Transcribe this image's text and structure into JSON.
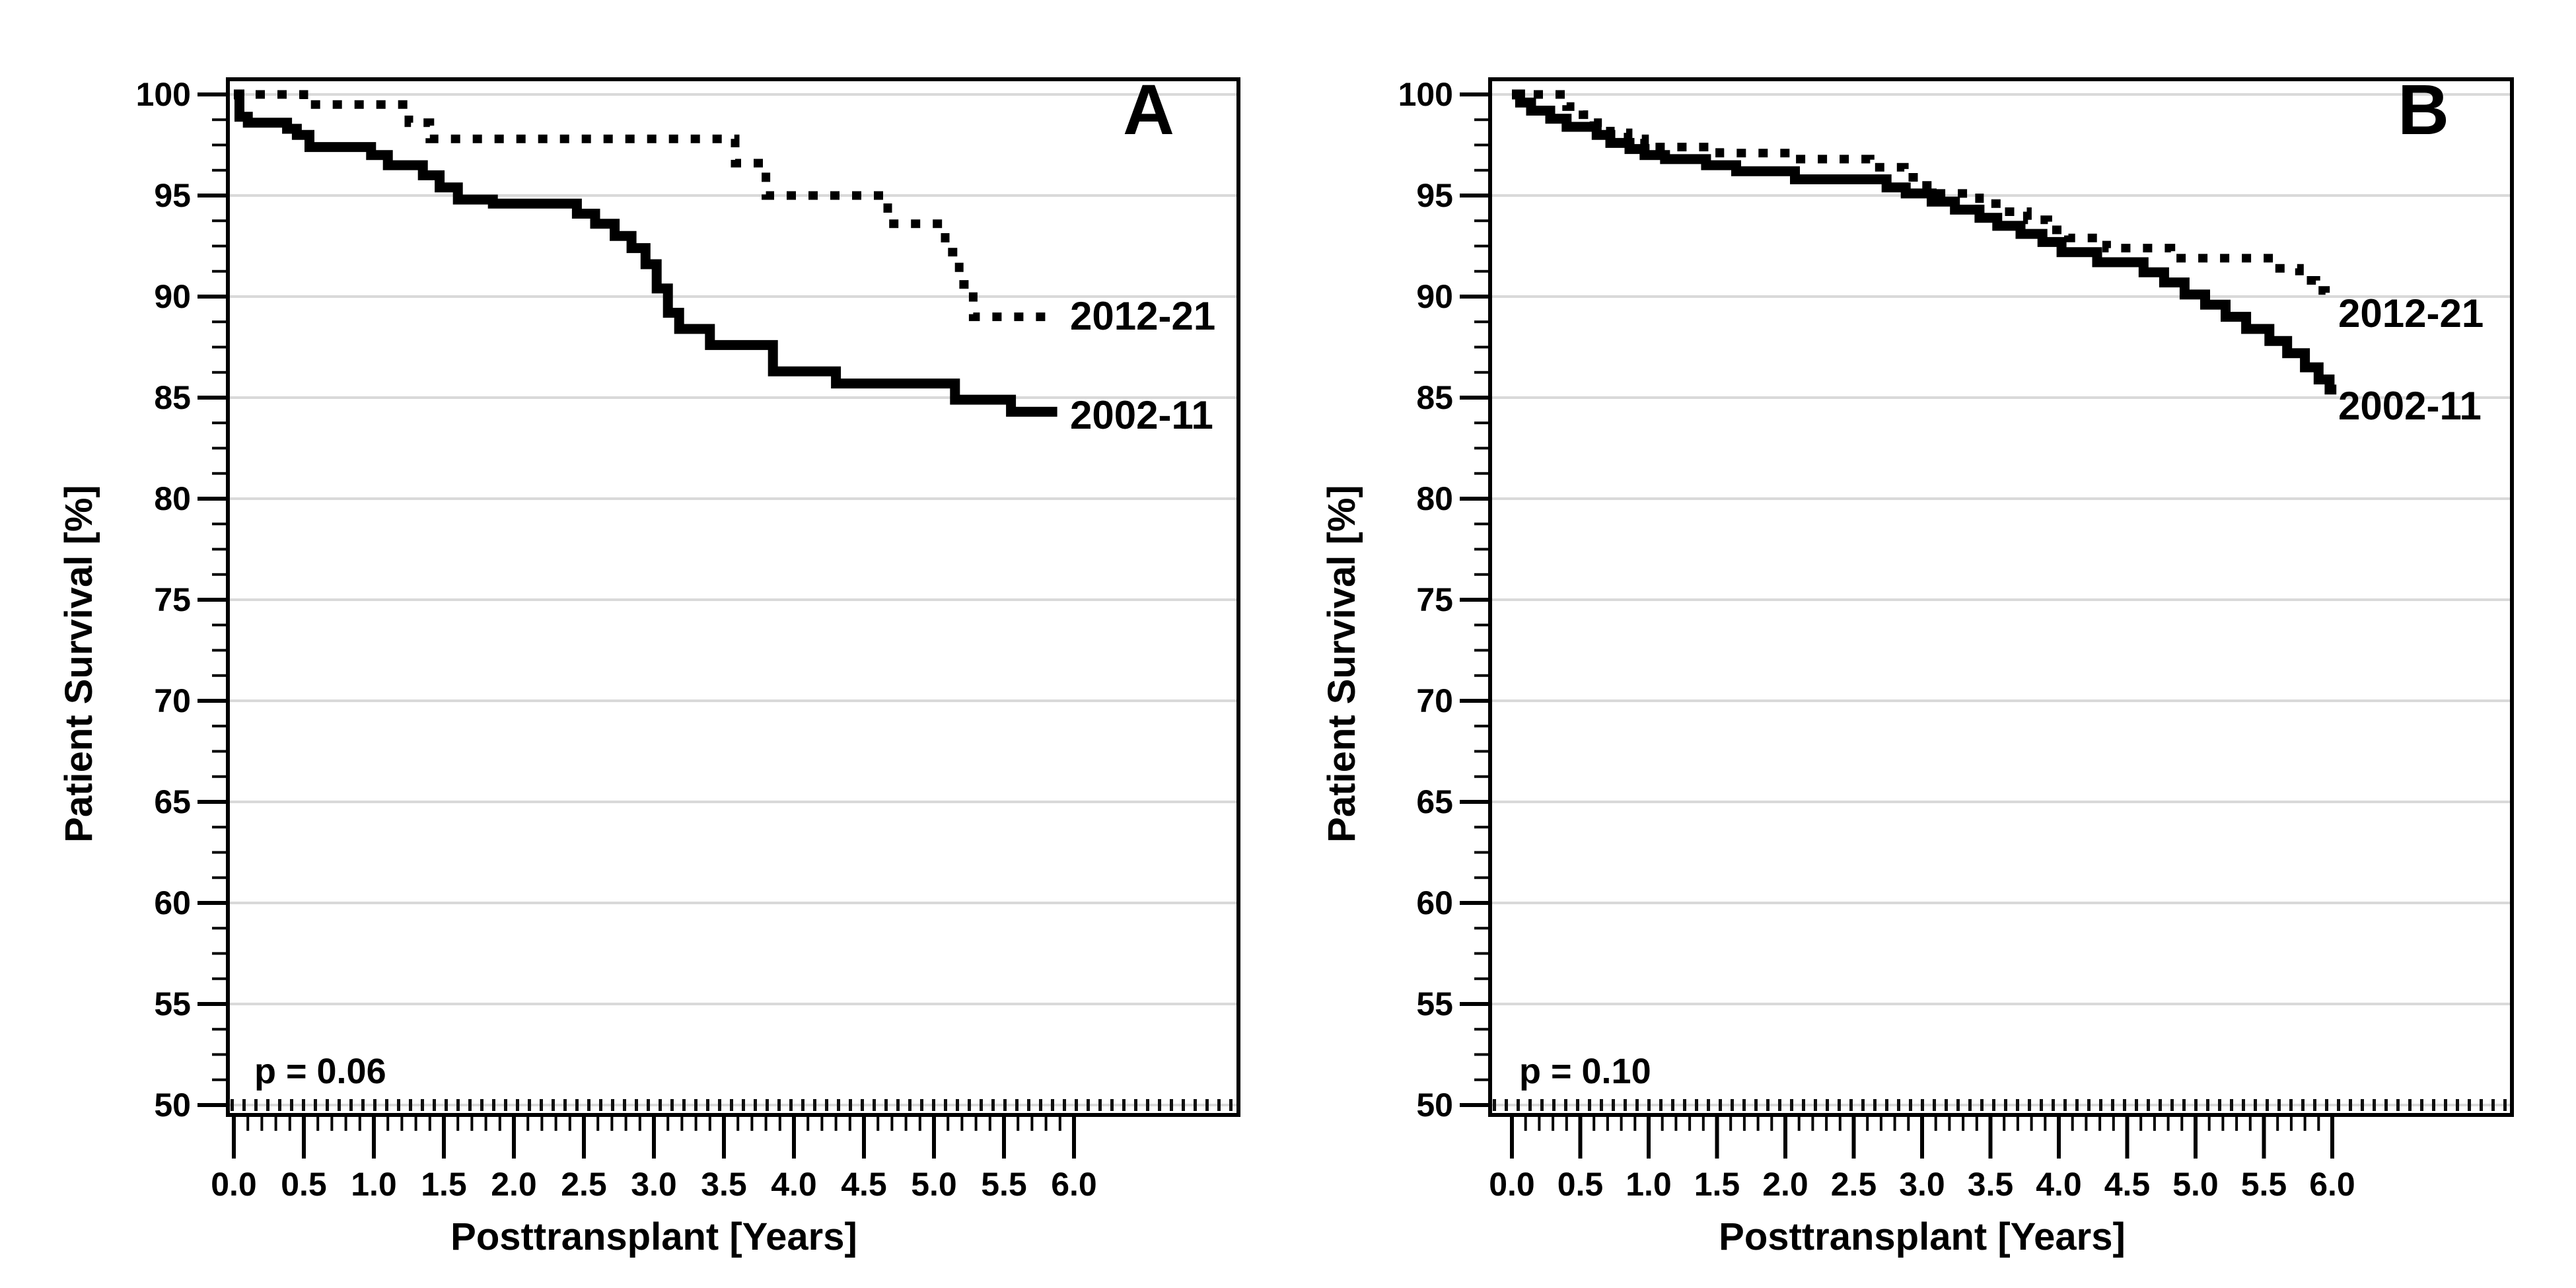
{
  "figure": {
    "background_color": "#ffffff",
    "line_color": "#000000",
    "gridline_color": "#d9d9d9",
    "reference_dot_color": "#111111"
  },
  "chart_data": [
    {
      "type": "line",
      "step_interpolation": true,
      "panel_label": "A",
      "p_value_label": "p = 0.06",
      "xlabel": "Posttransplant [Years]",
      "ylabel": "Patient Survival [%]",
      "xlim": [
        0,
        7.2
      ],
      "ylim": [
        50,
        101
      ],
      "grid": "horizontal-majors",
      "reference_line_y": 50,
      "x_tick_values": [
        0,
        0.5,
        1,
        1.5,
        2,
        2.5,
        3,
        3.5,
        4,
        4.5,
        5,
        5.5,
        6
      ],
      "x_tick_labels": [
        "0.0",
        "0.5",
        "1.0",
        "1.5",
        "2.0",
        "2.5",
        "3.0",
        "3.5",
        "4.0",
        "4.5",
        "5.0",
        "5.5",
        "6.0"
      ],
      "x_minor_tick_step": 0.1,
      "y_tick_values": [
        100,
        95,
        90,
        85,
        80,
        75,
        70,
        65,
        60,
        55,
        50
      ],
      "y_tick_labels": [
        "100",
        "95",
        "90",
        "85",
        "80",
        "75",
        "70",
        "65",
        "60",
        "55",
        "50"
      ],
      "y_minor_tick_step": 1.25,
      "legend_position": "right-of-curve-end",
      "series": [
        {
          "name": "2012-21",
          "style": "dotted",
          "end_x": 5.88,
          "values": [
            [
              0,
              100
            ],
            [
              0.5,
              99.5
            ],
            [
              1.25,
              98.6
            ],
            [
              1.4,
              97.8
            ],
            [
              3.58,
              96.6
            ],
            [
              3.8,
              95.0
            ],
            [
              4.67,
              93.6
            ],
            [
              5.08,
              92.2
            ],
            [
              5.18,
              90.6
            ],
            [
              5.28,
              89.0
            ]
          ]
        },
        {
          "name": "2002-11",
          "style": "solid",
          "end_x": 5.88,
          "values": [
            [
              0,
              100
            ],
            [
              0.04,
              98.9
            ],
            [
              0.1,
              98.6
            ],
            [
              0.38,
              98.3
            ],
            [
              0.45,
              98.0
            ],
            [
              0.54,
              97.4
            ],
            [
              0.98,
              97.0
            ],
            [
              1.1,
              96.5
            ],
            [
              1.35,
              96.0
            ],
            [
              1.47,
              95.4
            ],
            [
              1.6,
              94.8
            ],
            [
              1.85,
              94.6
            ],
            [
              2.45,
              94.1
            ],
            [
              2.58,
              93.6
            ],
            [
              2.72,
              93.0
            ],
            [
              2.84,
              92.4
            ],
            [
              2.94,
              91.6
            ],
            [
              3.02,
              90.4
            ],
            [
              3.1,
              89.2
            ],
            [
              3.18,
              88.4
            ],
            [
              3.4,
              87.6
            ],
            [
              3.85,
              86.3
            ],
            [
              4.3,
              85.7
            ],
            [
              5.15,
              84.9
            ],
            [
              5.55,
              84.3
            ]
          ]
        }
      ]
    },
    {
      "type": "line",
      "step_interpolation": true,
      "panel_label": "B",
      "p_value_label": "p = 0.10",
      "xlabel": "Posttransplant [Years]",
      "ylabel": "Patient Survival [%]",
      "xlim": [
        0,
        7.3
      ],
      "ylim": [
        50,
        101
      ],
      "grid": "horizontal-majors",
      "reference_line_y": 50,
      "x_tick_values": [
        0,
        0.5,
        1,
        1.5,
        2,
        2.5,
        3,
        3.5,
        4,
        4.5,
        5,
        5.5,
        6
      ],
      "x_tick_labels": [
        "0.0",
        "0.5",
        "1.0",
        "1.5",
        "2.0",
        "2.5",
        "3.0",
        "3.5",
        "4.0",
        "4.5",
        "5.0",
        "5.5",
        "6.0"
      ],
      "x_minor_tick_step": 0.1,
      "y_tick_values": [
        100,
        95,
        90,
        85,
        80,
        75,
        70,
        65,
        60,
        55,
        50
      ],
      "y_tick_labels": [
        "100",
        "95",
        "90",
        "85",
        "80",
        "75",
        "70",
        "65",
        "60",
        "55",
        "50"
      ],
      "y_minor_tick_step": 1.25,
      "legend_position": "right-of-curve-end",
      "series": [
        {
          "name": "2012-21",
          "style": "dotted",
          "end_x": 5.97,
          "values": [
            [
              0,
              100
            ],
            [
              0.4,
              99.4
            ],
            [
              0.52,
              99.0
            ],
            [
              0.6,
              98.6
            ],
            [
              0.72,
              98.1
            ],
            [
              0.85,
              97.8
            ],
            [
              0.97,
              97.4
            ],
            [
              1.52,
              97.1
            ],
            [
              2.07,
              96.8
            ],
            [
              2.62,
              96.4
            ],
            [
              2.87,
              95.9
            ],
            [
              2.97,
              95.5
            ],
            [
              3.07,
              95.1
            ],
            [
              3.42,
              94.6
            ],
            [
              3.58,
              94.2
            ],
            [
              3.77,
              93.8
            ],
            [
              3.92,
              93.3
            ],
            [
              4.07,
              92.9
            ],
            [
              4.35,
              92.4
            ],
            [
              4.82,
              91.9
            ],
            [
              5.58,
              91.4
            ],
            [
              5.76,
              90.8
            ],
            [
              5.88,
              90.3
            ],
            [
              5.95,
              89.9
            ]
          ]
        },
        {
          "name": "2002-11",
          "style": "solid",
          "end_x": 6.03,
          "values": [
            [
              0,
              100
            ],
            [
              0.06,
              99.6
            ],
            [
              0.14,
              99.2
            ],
            [
              0.28,
              98.8
            ],
            [
              0.4,
              98.4
            ],
            [
              0.62,
              98.0
            ],
            [
              0.72,
              97.6
            ],
            [
              0.86,
              97.3
            ],
            [
              0.97,
              97.0
            ],
            [
              1.12,
              96.8
            ],
            [
              1.42,
              96.5
            ],
            [
              1.64,
              96.2
            ],
            [
              2.07,
              95.8
            ],
            [
              2.74,
              95.4
            ],
            [
              2.88,
              95.1
            ],
            [
              3.07,
              94.7
            ],
            [
              3.24,
              94.3
            ],
            [
              3.42,
              93.9
            ],
            [
              3.55,
              93.5
            ],
            [
              3.72,
              93.1
            ],
            [
              3.88,
              92.7
            ],
            [
              4.02,
              92.2
            ],
            [
              4.28,
              91.7
            ],
            [
              4.62,
              91.2
            ],
            [
              4.77,
              90.7
            ],
            [
              4.92,
              90.1
            ],
            [
              5.07,
              89.6
            ],
            [
              5.22,
              89.0
            ],
            [
              5.37,
              88.4
            ],
            [
              5.54,
              87.8
            ],
            [
              5.67,
              87.2
            ],
            [
              5.8,
              86.5
            ],
            [
              5.9,
              85.9
            ],
            [
              5.98,
              85.4
            ]
          ]
        }
      ]
    }
  ]
}
